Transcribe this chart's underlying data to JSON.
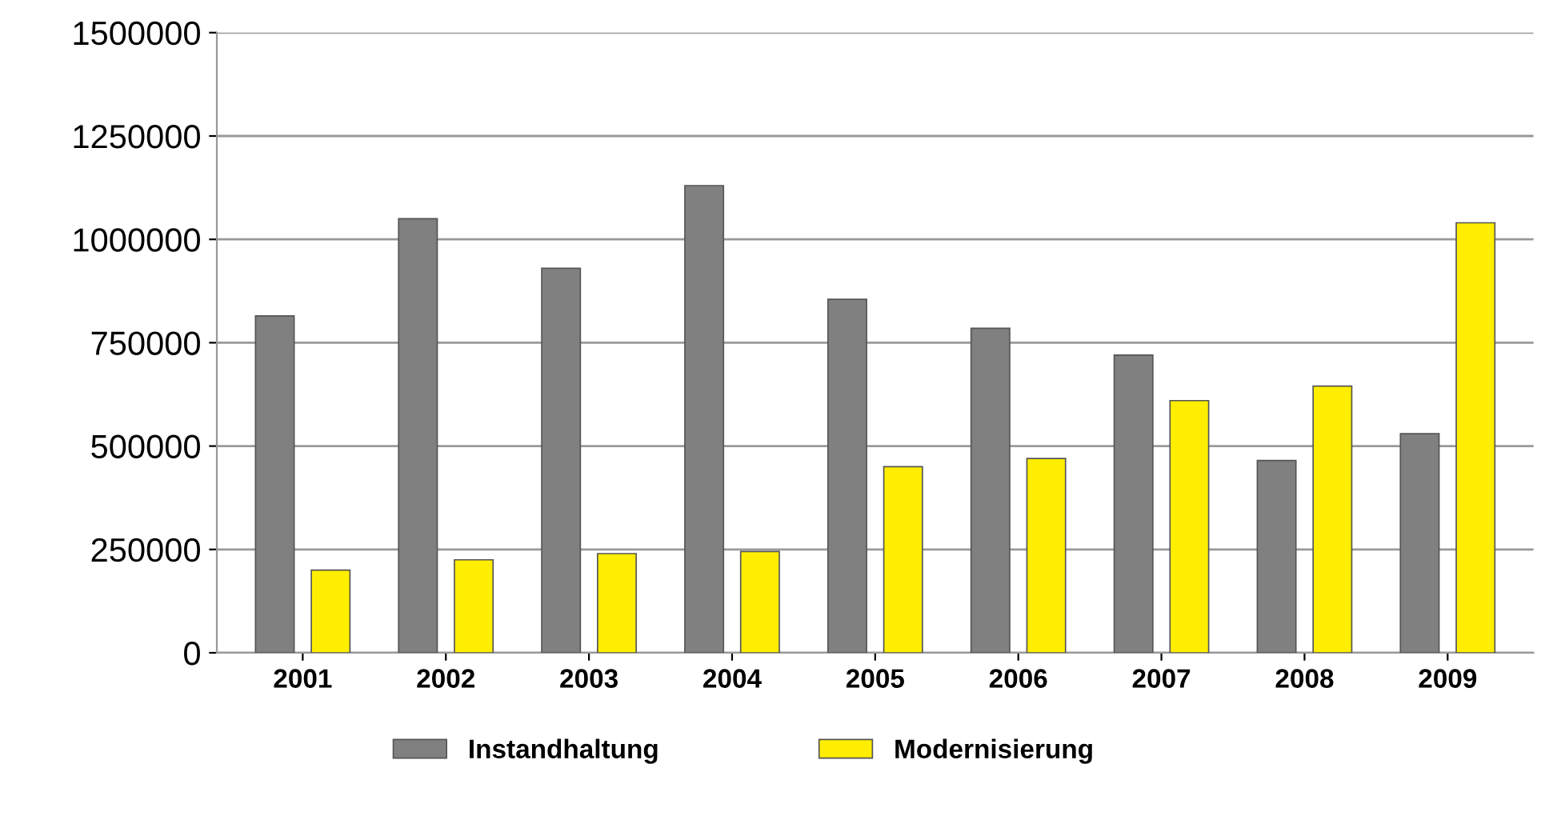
{
  "chart_data": {
    "type": "bar",
    "categories": [
      "2001",
      "2002",
      "2003",
      "2004",
      "2005",
      "2006",
      "2007",
      "2008",
      "2009"
    ],
    "series": [
      {
        "name": "Instandhaltung",
        "color": "#808080",
        "values": [
          815000,
          1050000,
          930000,
          1130000,
          855000,
          785000,
          720000,
          465000,
          530000
        ]
      },
      {
        "name": "Modernisierung",
        "color": "#ffee00",
        "values": [
          200000,
          225000,
          240000,
          245000,
          450000,
          470000,
          610000,
          645000,
          1040000
        ]
      }
    ],
    "ylim": [
      0,
      1500000
    ],
    "yticks": [
      0,
      250000,
      500000,
      750000,
      1000000,
      1250000,
      1500000
    ],
    "grid": "y",
    "legend": "bottom"
  }
}
